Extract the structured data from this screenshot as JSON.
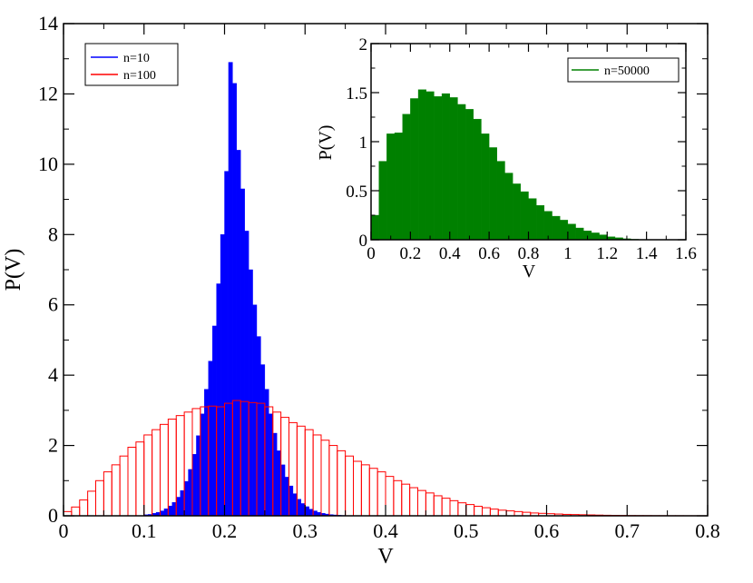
{
  "chart_data": [
    {
      "type": "bar",
      "xlabel": "V",
      "ylabel": "P(V)",
      "xlim": [
        0,
        0.8
      ],
      "ylim": [
        0,
        14
      ],
      "xticks": [
        "0",
        "0.1",
        "0.2",
        "0.3",
        "0.4",
        "0.5",
        "0.6",
        "0.7",
        "0.8"
      ],
      "yticks": [
        "0",
        "2",
        "4",
        "6",
        "8",
        "10",
        "12",
        "14"
      ],
      "legend_position": "top-left",
      "series": [
        {
          "name": "n=10",
          "color": "#0000ff",
          "style": "filled",
          "bin_start": 0.0,
          "bin_width": 0.005,
          "values": [
            0,
            0,
            0,
            0,
            0,
            0,
            0,
            0,
            0,
            0,
            0,
            0,
            0,
            0,
            0,
            0,
            0,
            0,
            0,
            0,
            0.03,
            0.04,
            0.07,
            0.1,
            0.14,
            0.2,
            0.28,
            0.38,
            0.53,
            0.72,
            0.98,
            1.32,
            1.75,
            2.28,
            2.9,
            3.6,
            4.4,
            5.4,
            6.6,
            8.0,
            9.8,
            12.9,
            12.3,
            10.4,
            9.3,
            8.1,
            7.0,
            6.0,
            5.1,
            4.3,
            3.6,
            2.9,
            2.35,
            1.85,
            1.45,
            1.1,
            0.85,
            0.63,
            0.47,
            0.35,
            0.26,
            0.19,
            0.14,
            0.1,
            0.07,
            0.05,
            0.035,
            0.025,
            0.017,
            0.012,
            0.008,
            0.005,
            0.003,
            0.002,
            0.001,
            0,
            0,
            0,
            0,
            0
          ]
        },
        {
          "name": "n=100",
          "color": "#ff0000",
          "style": "outline",
          "bin_start": 0.0,
          "bin_width": 0.01,
          "values": [
            0.12,
            0.25,
            0.45,
            0.7,
            1.0,
            1.25,
            1.45,
            1.7,
            1.95,
            2.1,
            2.3,
            2.45,
            2.6,
            2.75,
            2.85,
            2.95,
            3.05,
            3.1,
            3.12,
            3.1,
            3.2,
            3.28,
            3.25,
            3.22,
            3.2,
            3.1,
            2.95,
            2.8,
            2.65,
            2.55,
            2.45,
            2.3,
            2.15,
            2.0,
            1.85,
            1.7,
            1.55,
            1.45,
            1.35,
            1.25,
            1.12,
            1.0,
            0.9,
            0.8,
            0.72,
            0.65,
            0.57,
            0.5,
            0.43,
            0.37,
            0.32,
            0.27,
            0.23,
            0.19,
            0.16,
            0.14,
            0.12,
            0.1,
            0.08,
            0.07,
            0.06,
            0.05,
            0.04,
            0.035,
            0.03,
            0.025,
            0.02,
            0.015,
            0.012,
            0.01,
            0.008,
            0.007,
            0.006,
            0.005,
            0.004,
            0.003,
            0.003,
            0.002,
            0.002,
            0.001
          ]
        }
      ]
    },
    {
      "type": "bar",
      "xlabel": "V",
      "ylabel": "P(V)",
      "xlim": [
        0,
        1.6
      ],
      "ylim": [
        0,
        2
      ],
      "xticks": [
        "0",
        "0.2",
        "0.4",
        "0.6",
        "0.8",
        "1",
        "1.2",
        "1.4",
        "1.6"
      ],
      "yticks": [
        "0",
        "0.5",
        "1",
        "1.5",
        "2"
      ],
      "legend_position": "top-right",
      "series": [
        {
          "name": "n=50000",
          "color": "#008000",
          "style": "filled",
          "bin_start": 0.0,
          "bin_width": 0.04,
          "values": [
            0.25,
            0.8,
            1.08,
            1.09,
            1.28,
            1.44,
            1.53,
            1.51,
            1.46,
            1.49,
            1.45,
            1.38,
            1.33,
            1.23,
            1.08,
            0.94,
            0.8,
            0.68,
            0.57,
            0.49,
            0.42,
            0.35,
            0.29,
            0.24,
            0.2,
            0.16,
            0.12,
            0.09,
            0.07,
            0.05,
            0.03,
            0.02,
            0.01,
            0.005,
            0.003,
            0.002,
            0.001,
            0,
            0,
            0
          ]
        }
      ]
    }
  ]
}
